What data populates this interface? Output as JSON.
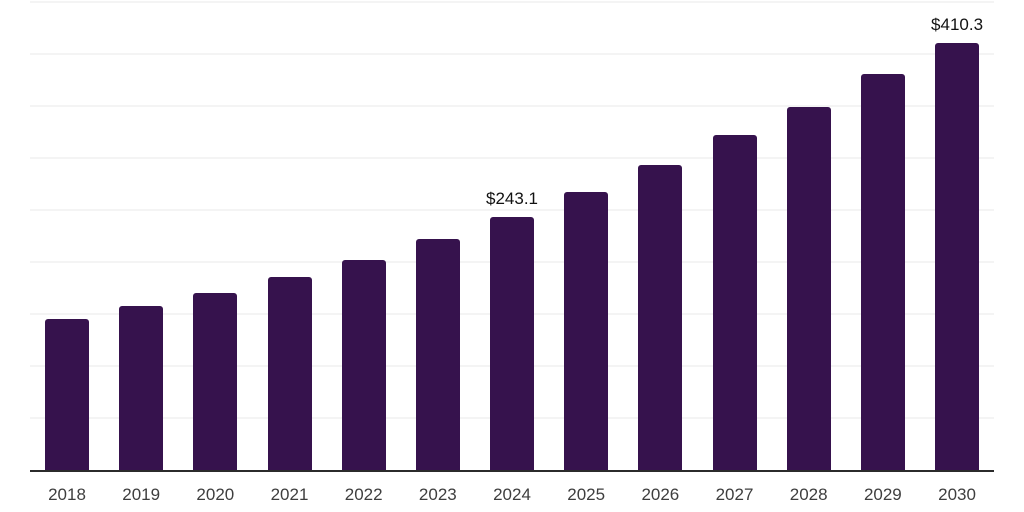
{
  "chart_data": {
    "type": "bar",
    "title": "",
    "xlabel": "",
    "ylabel": "",
    "categories": [
      "2018",
      "2019",
      "2020",
      "2021",
      "2022",
      "2023",
      "2024",
      "2025",
      "2026",
      "2027",
      "2028",
      "2029",
      "2030"
    ],
    "values": [
      144.9,
      157.4,
      169.9,
      185.3,
      202.1,
      222.3,
      243.1,
      267.1,
      293.6,
      322.0,
      349.4,
      381.2,
      410.3
    ],
    "data_labels": [
      "",
      "",
      "",
      "",
      "",
      "",
      "$243.1",
      "",
      "",
      "",
      "",
      "",
      "$410.3"
    ],
    "ylim": [
      0,
      450
    ],
    "gridline_step": 50,
    "grid": true,
    "legend": false,
    "y_axis_labels_visible": false,
    "colors": {
      "bar": "#36124D",
      "axis_line": "#2b2b2b",
      "gridline": "#f4f4f4",
      "tick_label": "#3e3e3e",
      "data_label": "#121212",
      "background": "#ffffff"
    }
  }
}
